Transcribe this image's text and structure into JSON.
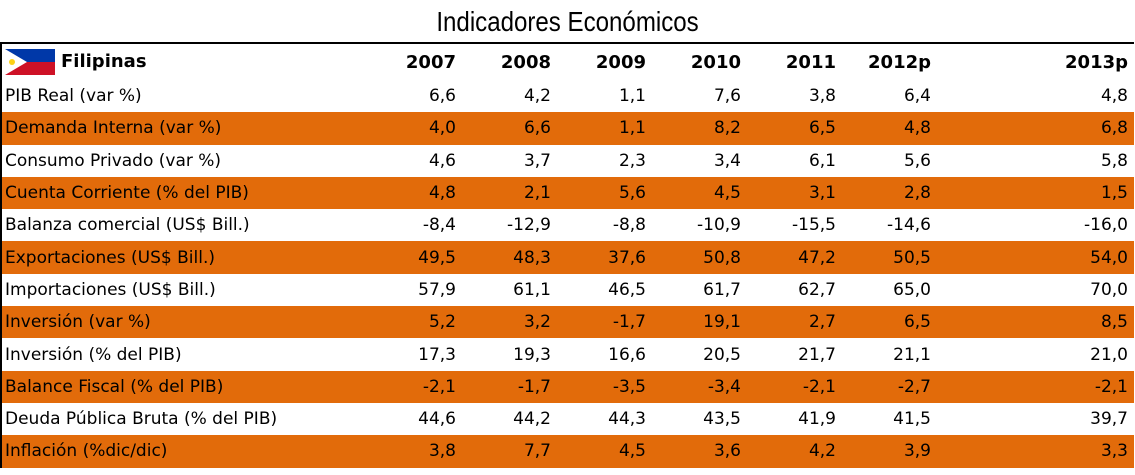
{
  "title": "Indicadores Económicos",
  "table": {
    "header": [
      "Filipinas",
      "2007",
      "2008",
      "2009",
      "2010",
      "2011",
      "2012p",
      "2013p"
    ],
    "rows": [
      [
        "PIB Real (var %)",
        "6,6",
        "4,2",
        "1,1",
        "7,6",
        "3,8",
        "6,4",
        "4,8"
      ],
      [
        "Demanda Interna (var %)",
        "4,0",
        "6,6",
        "1,1",
        "8,2",
        "6,5",
        "4,8",
        "6,8"
      ],
      [
        "Consumo Privado (var %)",
        "4,6",
        "3,7",
        "2,3",
        "3,4",
        "6,1",
        "5,6",
        "5,8"
      ],
      [
        "Cuenta Corriente (% del PIB)",
        "4,8",
        "2,1",
        "5,6",
        "4,5",
        "3,1",
        "2,8",
        "1,5"
      ],
      [
        "Balanza comercial (US$ Bill.)",
        "-8,4",
        "-12,9",
        "-8,8",
        "-10,9",
        "-15,5",
        "-14,6",
        "-16,0"
      ],
      [
        "Exportaciones (US$ Bill.)",
        "49,5",
        "48,3",
        "37,6",
        "50,8",
        "47,2",
        "50,5",
        "54,0"
      ],
      [
        "Importaciones (US$ Bill.)",
        "57,9",
        "61,1",
        "46,5",
        "61,7",
        "62,7",
        "65,0",
        "70,0"
      ],
      [
        "Inversión (var %)",
        "5,2",
        "3,2",
        "-1,7",
        "19,1",
        "2,7",
        "6,5",
        "8,5"
      ],
      [
        "Inversión (% del PIB)",
        "17,3",
        "19,3",
        "16,6",
        "20,5",
        "21,7",
        "21,1",
        "21,0"
      ],
      [
        "Balance Fiscal (% del PIB)",
        "-2,1",
        "-1,7",
        "-3,5",
        "-3,4",
        "-2,1",
        "-2,7",
        "-2,1"
      ],
      [
        "Deuda Pública Bruta (% del PIB)",
        "44,6",
        "44,2",
        "44,3",
        "43,5",
        "41,9",
        "41,5",
        "39,7"
      ],
      [
        "Inflación (%dic/dic)",
        "3,8",
        "7,7",
        "4,5",
        "3,6",
        "4,2",
        "3,9",
        "3,3"
      ]
    ]
  }
}
